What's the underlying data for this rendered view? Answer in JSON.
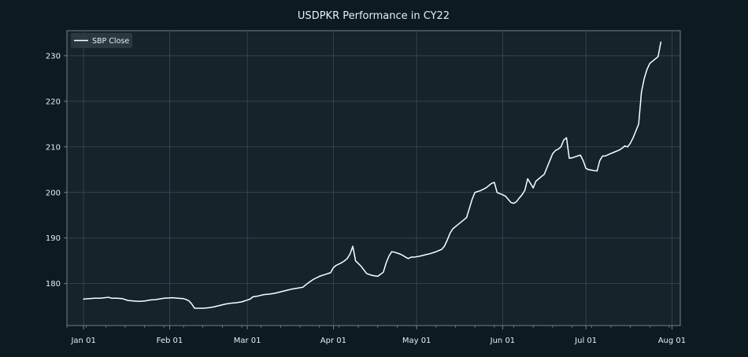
{
  "chart_data": {
    "type": "line",
    "title": "USDPKR Performance in CY22",
    "xlabel": "",
    "ylabel": "",
    "x_axis_type": "date",
    "xlim": [
      "2021-12-26",
      "2022-08-04"
    ],
    "ylim": [
      170.8,
      235.5
    ],
    "x_ticks": [
      {
        "date": "2022-01-01",
        "label": "Jan 01"
      },
      {
        "date": "2022-02-01",
        "label": "Feb 01"
      },
      {
        "date": "2022-03-01",
        "label": "Mar 01"
      },
      {
        "date": "2022-04-01",
        "label": "Apr 01"
      },
      {
        "date": "2022-05-01",
        "label": "May 01"
      },
      {
        "date": "2022-06-01",
        "label": "Jun 01"
      },
      {
        "date": "2022-07-01",
        "label": "Jul 01"
      },
      {
        "date": "2022-08-01",
        "label": "Aug 01"
      }
    ],
    "y_ticks": [
      180,
      190,
      200,
      210,
      220,
      230
    ],
    "grid": true,
    "legend_position": "top-left",
    "colors": {
      "background": "#0e1a22",
      "plot_background": "#16232b",
      "grid": "#3e4f58",
      "axis": "#8b9aa2",
      "text": "#e6eef2",
      "line": "#ffffff",
      "legend_background": "#2e3b42"
    },
    "series": [
      {
        "name": "SBP Close",
        "points": [
          [
            "2022-01-01",
            176.6
          ],
          [
            "2022-01-03",
            176.7
          ],
          [
            "2022-01-05",
            176.8
          ],
          [
            "2022-01-07",
            176.8
          ],
          [
            "2022-01-10",
            177.0
          ],
          [
            "2022-01-11",
            176.8
          ],
          [
            "2022-01-13",
            176.8
          ],
          [
            "2022-01-15",
            176.7
          ],
          [
            "2022-01-17",
            176.3
          ],
          [
            "2022-01-19",
            176.2
          ],
          [
            "2022-01-21",
            176.1
          ],
          [
            "2022-01-23",
            176.2
          ],
          [
            "2022-01-25",
            176.4
          ],
          [
            "2022-01-27",
            176.5
          ],
          [
            "2022-01-30",
            176.8
          ],
          [
            "2022-02-02",
            176.9
          ],
          [
            "2022-02-04",
            176.8
          ],
          [
            "2022-02-06",
            176.7
          ],
          [
            "2022-02-07",
            176.5
          ],
          [
            "2022-02-08",
            176.2
          ],
          [
            "2022-02-09",
            175.5
          ],
          [
            "2022-02-10",
            174.6
          ],
          [
            "2022-02-13",
            174.6
          ],
          [
            "2022-02-15",
            174.7
          ],
          [
            "2022-02-17",
            174.9
          ],
          [
            "2022-02-19",
            175.2
          ],
          [
            "2022-02-21",
            175.5
          ],
          [
            "2022-02-23",
            175.7
          ],
          [
            "2022-02-25",
            175.8
          ],
          [
            "2022-02-27",
            176.0
          ],
          [
            "2022-03-01",
            176.4
          ],
          [
            "2022-03-02",
            176.6
          ],
          [
            "2022-03-03",
            177.1
          ],
          [
            "2022-03-05",
            177.3
          ],
          [
            "2022-03-07",
            177.6
          ],
          [
            "2022-03-09",
            177.7
          ],
          [
            "2022-03-11",
            177.9
          ],
          [
            "2022-03-13",
            178.2
          ],
          [
            "2022-03-15",
            178.5
          ],
          [
            "2022-03-17",
            178.8
          ],
          [
            "2022-03-19",
            179.0
          ],
          [
            "2022-03-21",
            179.2
          ],
          [
            "2022-03-23",
            180.2
          ],
          [
            "2022-03-25",
            181.0
          ],
          [
            "2022-03-27",
            181.6
          ],
          [
            "2022-03-29",
            182.0
          ],
          [
            "2022-03-31",
            182.4
          ],
          [
            "2022-04-01",
            183.5
          ],
          [
            "2022-04-02",
            184.0
          ],
          [
            "2022-04-04",
            184.6
          ],
          [
            "2022-04-05",
            185.0
          ],
          [
            "2022-04-06",
            185.5
          ],
          [
            "2022-04-07",
            186.5
          ],
          [
            "2022-04-08",
            188.2
          ],
          [
            "2022-04-09",
            185.0
          ],
          [
            "2022-04-11",
            183.8
          ],
          [
            "2022-04-12",
            183.0
          ],
          [
            "2022-04-13",
            182.2
          ],
          [
            "2022-04-15",
            181.8
          ],
          [
            "2022-04-17",
            181.6
          ],
          [
            "2022-04-19",
            182.5
          ],
          [
            "2022-04-20",
            184.5
          ],
          [
            "2022-04-21",
            186.0
          ],
          [
            "2022-04-22",
            187.0
          ],
          [
            "2022-04-23",
            186.9
          ],
          [
            "2022-04-25",
            186.5
          ],
          [
            "2022-04-26",
            186.2
          ],
          [
            "2022-04-27",
            185.8
          ],
          [
            "2022-04-28",
            185.5
          ],
          [
            "2022-04-29",
            185.8
          ],
          [
            "2022-04-30",
            185.8
          ],
          [
            "2022-05-02",
            186.0
          ],
          [
            "2022-05-04",
            186.3
          ],
          [
            "2022-05-06",
            186.6
          ],
          [
            "2022-05-08",
            187.0
          ],
          [
            "2022-05-10",
            187.5
          ],
          [
            "2022-05-11",
            188.2
          ],
          [
            "2022-05-12",
            189.5
          ],
          [
            "2022-05-13",
            191.0
          ],
          [
            "2022-05-14",
            192.0
          ],
          [
            "2022-05-15",
            192.5
          ],
          [
            "2022-05-17",
            193.5
          ],
          [
            "2022-05-18",
            194.0
          ],
          [
            "2022-05-19",
            194.5
          ],
          [
            "2022-05-20",
            196.5
          ],
          [
            "2022-05-21",
            198.5
          ],
          [
            "2022-05-22",
            200.0
          ],
          [
            "2022-05-24",
            200.4
          ],
          [
            "2022-05-26",
            201.0
          ],
          [
            "2022-05-27",
            201.5
          ],
          [
            "2022-05-28",
            202.0
          ],
          [
            "2022-05-29",
            202.2
          ],
          [
            "2022-05-30",
            200.0
          ],
          [
            "2022-06-01",
            199.5
          ],
          [
            "2022-06-02",
            199.2
          ],
          [
            "2022-06-03",
            198.5
          ],
          [
            "2022-06-04",
            197.8
          ],
          [
            "2022-06-05",
            197.6
          ],
          [
            "2022-06-06",
            198.0
          ],
          [
            "2022-06-07",
            198.8
          ],
          [
            "2022-06-08",
            199.5
          ],
          [
            "2022-06-09",
            200.5
          ],
          [
            "2022-06-10",
            203.0
          ],
          [
            "2022-06-11",
            202.0
          ],
          [
            "2022-06-12",
            201.0
          ],
          [
            "2022-06-13",
            202.5
          ],
          [
            "2022-06-14",
            203.0
          ],
          [
            "2022-06-15",
            203.5
          ],
          [
            "2022-06-16",
            204.0
          ],
          [
            "2022-06-17",
            205.5
          ],
          [
            "2022-06-18",
            207.0
          ],
          [
            "2022-06-19",
            208.5
          ],
          [
            "2022-06-20",
            209.2
          ],
          [
            "2022-06-21",
            209.5
          ],
          [
            "2022-06-22",
            210.0
          ],
          [
            "2022-06-23",
            211.5
          ],
          [
            "2022-06-24",
            212.0
          ],
          [
            "2022-06-25",
            207.5
          ],
          [
            "2022-06-26",
            207.6
          ],
          [
            "2022-06-27",
            207.8
          ],
          [
            "2022-06-28",
            208.0
          ],
          [
            "2022-06-29",
            208.2
          ],
          [
            "2022-06-30",
            207.0
          ],
          [
            "2022-07-01",
            205.3
          ],
          [
            "2022-07-02",
            205.0
          ],
          [
            "2022-07-03",
            204.9
          ],
          [
            "2022-07-04",
            204.8
          ],
          [
            "2022-07-05",
            204.7
          ],
          [
            "2022-07-06",
            207.0
          ],
          [
            "2022-07-07",
            208.0
          ],
          [
            "2022-07-08",
            208.0
          ],
          [
            "2022-07-09",
            208.3
          ],
          [
            "2022-07-11",
            208.8
          ],
          [
            "2022-07-13",
            209.3
          ],
          [
            "2022-07-14",
            209.7
          ],
          [
            "2022-07-15",
            210.2
          ],
          [
            "2022-07-16",
            210.0
          ],
          [
            "2022-07-17",
            210.8
          ],
          [
            "2022-07-18",
            212.0
          ],
          [
            "2022-07-19",
            213.5
          ],
          [
            "2022-07-20",
            215.0
          ],
          [
            "2022-07-21",
            222.0
          ],
          [
            "2022-07-22",
            225.0
          ],
          [
            "2022-07-23",
            227.0
          ],
          [
            "2022-07-24",
            228.3
          ],
          [
            "2022-07-25",
            228.8
          ],
          [
            "2022-07-26",
            229.3
          ],
          [
            "2022-07-27",
            229.8
          ],
          [
            "2022-07-28",
            233.0
          ]
        ]
      }
    ]
  }
}
